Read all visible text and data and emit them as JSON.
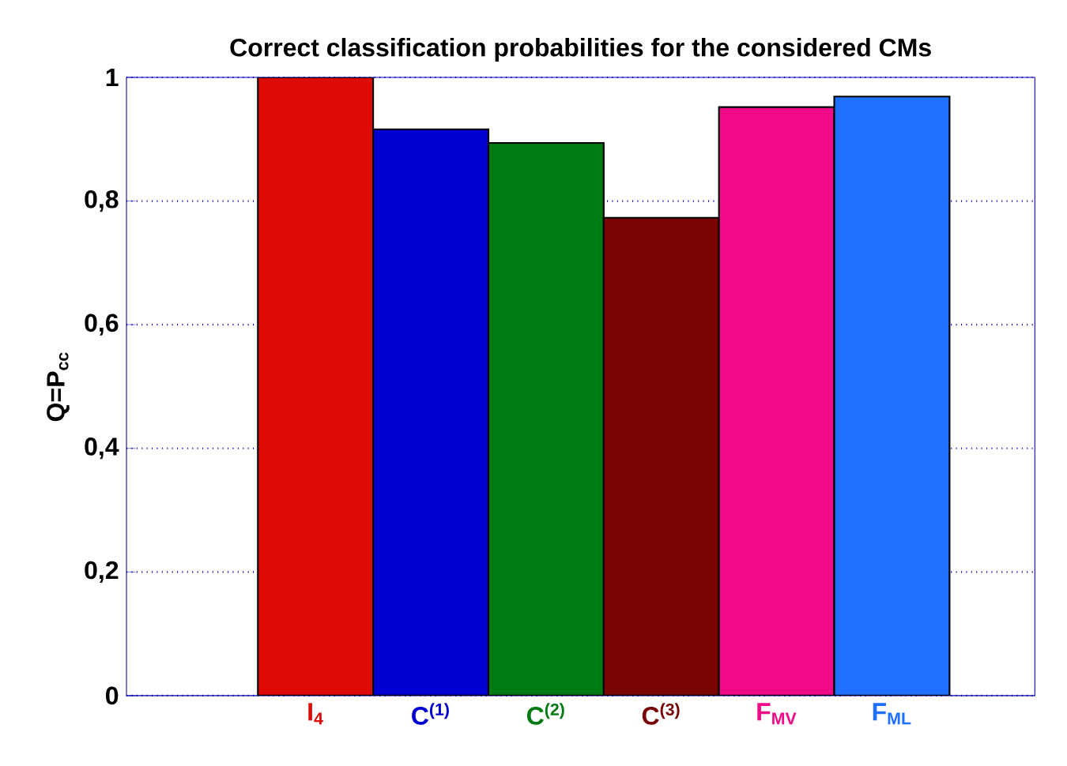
{
  "chart_data": {
    "type": "bar",
    "title": "Correct classification probabilities for the considered CMs",
    "ylabel": "Q=P$_{cc}$",
    "categories": [
      "I$_{4}$",
      "C$^{(1)}$",
      "C$^{(2)}$",
      "C$^{(3)}$",
      "F$_{MV}$",
      "F$_{ML}$"
    ],
    "values": [
      1.0,
      0.916,
      0.894,
      0.773,
      0.952,
      0.969
    ],
    "colors": [
      "#dd0a05",
      "#0000d0",
      "#007a12",
      "#7a0404",
      "#f00a88",
      "#2070ff"
    ],
    "ylim": [
      0,
      1
    ],
    "yticks": [
      0,
      {
        "value": 0.2,
        "label": "0,2"
      },
      {
        "value": 0.4,
        "label": "0,4"
      },
      {
        "value": 0.6,
        "label": "0,6"
      },
      {
        "value": 0.8,
        "label": "0,8"
      },
      1
    ],
    "grid": "y"
  }
}
